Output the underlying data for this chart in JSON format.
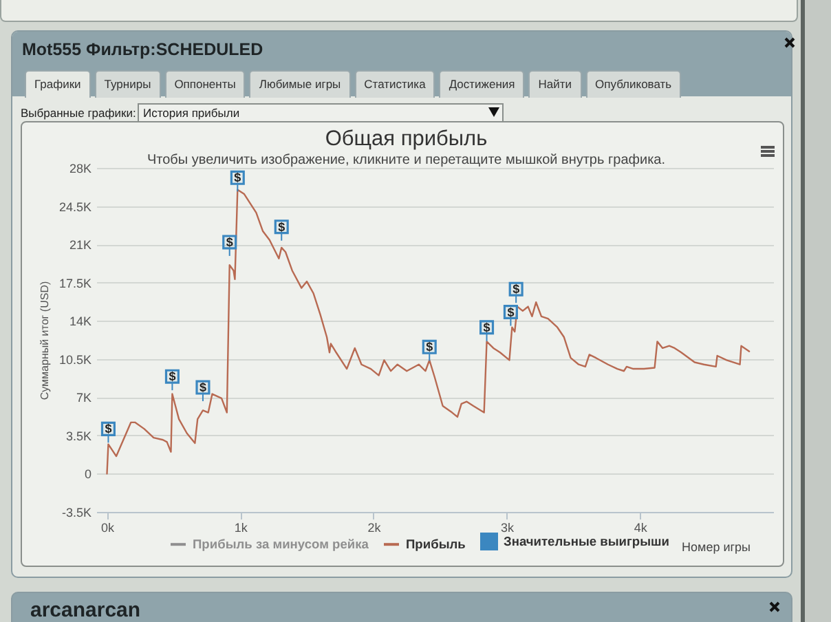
{
  "chart_data": {
    "type": "line",
    "title": "Общая прибыль",
    "subtitle": "Чтобы увеличить изображение, кликните и перетащите мышкой внутрь графика.",
    "xlabel": "Номер игры",
    "ylabel": "Суммарный итог (USD)",
    "annotations": [
      "Mot555 Фильтр:SCHEDULED",
      "Графики",
      "Турниры",
      "Оппоненты",
      "Любимые игры",
      "Статистика",
      "Достижения",
      "Найти",
      "Опубликовать",
      "Выбранные графики:",
      "История прибыли",
      "arcanarcan"
    ],
    "xlim": [
      -80,
      5000
    ],
    "xticks": [
      {
        "value": 0,
        "label": "0k"
      },
      {
        "value": 1000,
        "label": "1k"
      },
      {
        "value": 2000,
        "label": "2k"
      },
      {
        "value": 3000,
        "label": "3k"
      },
      {
        "value": 4000,
        "label": "4k"
      }
    ],
    "ylim": [
      -3500,
      28000
    ],
    "yticks": [
      {
        "value": -3500,
        "label": "-3.5K"
      },
      0,
      {
        "value": 3500,
        "label": "3.5K"
      },
      {
        "value": 7000,
        "label": "7K"
      },
      {
        "value": 10500,
        "label": "10.5K"
      },
      {
        "value": 14000,
        "label": "14K"
      },
      {
        "value": 17500,
        "label": "17.5K"
      },
      {
        "value": 21000,
        "label": "21K"
      },
      {
        "value": 24500,
        "label": "24.5K"
      },
      {
        "value": 28000,
        "label": "28K"
      }
    ],
    "grid": "y",
    "legend": "bottom",
    "series": [
      {
        "name": "Прибыль за минусом рейка",
        "color": "#8f8f8f"
      },
      {
        "name": "Прибыль",
        "color": "#b86a52",
        "x": [
          0,
          10,
          70,
          180,
          210,
          280,
          350,
          420,
          450,
          480,
          490,
          540,
          600,
          660,
          680,
          720,
          760,
          790,
          860,
          900,
          920,
          950,
          960,
          980,
          1030,
          1120,
          1170,
          1220,
          1290,
          1310,
          1340,
          1390,
          1460,
          1500,
          1550,
          1600,
          1650,
          1670,
          1680,
          1720,
          1800,
          1860,
          1910,
          1980,
          2040,
          2080,
          2130,
          2180,
          2250,
          2340,
          2390,
          2420,
          2460,
          2520,
          2590,
          2630,
          2660,
          2700,
          2750,
          2830,
          2850,
          2900,
          2950,
          3020,
          3040,
          3060,
          3080,
          3120,
          3160,
          3190,
          3220,
          3260,
          3310,
          3380,
          3430,
          3480,
          3540,
          3590,
          3620,
          3670,
          3760,
          3830,
          3880,
          3900,
          3950,
          4030,
          4110,
          4130,
          4170,
          4220,
          4260,
          4310,
          4410,
          4480,
          4570,
          4580,
          4650,
          4750,
          4760,
          4820
        ],
        "values": [
          0,
          2700,
          1600,
          4700,
          4700,
          4100,
          3300,
          3100,
          2900,
          2000,
          7300,
          5000,
          3700,
          2800,
          5000,
          5800,
          5600,
          7300,
          6900,
          5600,
          19100,
          18600,
          17800,
          26000,
          25600,
          23900,
          22200,
          21400,
          19700,
          20700,
          20300,
          18600,
          17000,
          17600,
          16500,
          14600,
          12500,
          11100,
          11900,
          11100,
          9600,
          11500,
          10000,
          9600,
          9000,
          10400,
          9400,
          10000,
          9400,
          10000,
          9400,
          10400,
          8800,
          6200,
          5600,
          5200,
          6400,
          6600,
          6200,
          5600,
          12100,
          11500,
          11100,
          10400,
          13400,
          13000,
          15300,
          14900,
          15300,
          14400,
          15700,
          14400,
          14200,
          13400,
          12500,
          10600,
          10000,
          9800,
          10900,
          10600,
          10000,
          9600,
          9400,
          9800,
          9600,
          9600,
          9700,
          12100,
          11500,
          11700,
          11500,
          11100,
          10200,
          10000,
          9800,
          10800,
          10400,
          10000,
          11700,
          11200
        ]
      },
      {
        "name": "Значительные выигрыши",
        "type": "scatter",
        "color": "#3b87c0",
        "marker": "square",
        "x": [
          10,
          490,
          720,
          920,
          980,
          1310,
          2420,
          2850,
          3030,
          3070
        ],
        "values": [
          4100,
          8900,
          7900,
          21200,
          27100,
          22600,
          11600,
          13400,
          14800,
          16900
        ],
        "value_labels": [
          "$",
          "$",
          "$",
          "$",
          "$",
          "$",
          "$",
          "$",
          "$",
          "$"
        ]
      }
    ]
  }
}
